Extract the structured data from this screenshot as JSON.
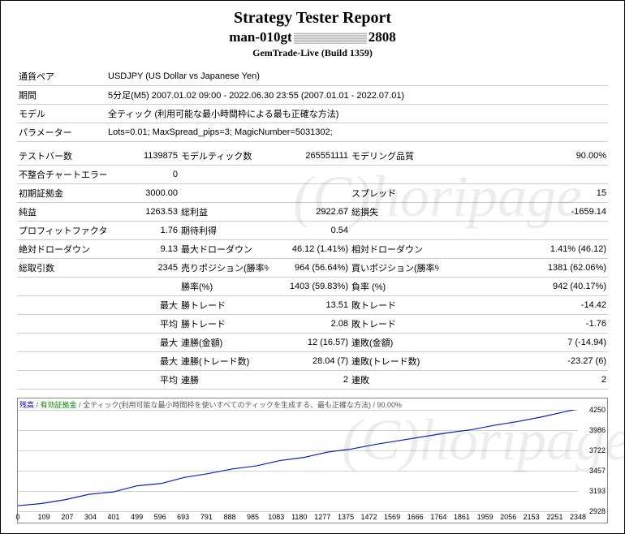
{
  "watermark": "(C)horipage",
  "header": {
    "title": "Strategy Tester Report",
    "subtitle_prefix": "man-010gt",
    "subtitle_suffix": "2808",
    "build": "GemTrade-Live (Build 1359)"
  },
  "params": {
    "symbol_label": "通貨ペア",
    "symbol": "USDJPY (US Dollar vs Japanese Yen)",
    "period_label": "期間",
    "period": "5分足(M5) 2007.01.02 09:00 - 2022.06.30 23:55 (2007.01.01 - 2022.07.01)",
    "model_label": "モデル",
    "model": "全ティック (利用可能な最小時間枠による最も正確な方法)",
    "parameters_label": "パラメーター",
    "parameters": "Lots=0.01; MaxSpread_pips=3; MagicNumber=5031302;"
  },
  "stats": {
    "bars_label": "テストバー数",
    "bars": "1139875",
    "ticks_label": "モデルティック数",
    "ticks": "265551111",
    "quality_label": "モデリング品質",
    "quality": "90.00%",
    "mismatch_label": "不整合チャートエラー",
    "mismatch": "0",
    "deposit_label": "初期証拠金",
    "deposit": "3000.00",
    "spread_label": "スプレッド",
    "spread": "15",
    "net_label": "純益",
    "net": "1263.53",
    "gross_profit_label": "総利益",
    "gross_profit": "2922.67",
    "gross_loss_label": "総損失",
    "gross_loss": "-1659.14",
    "pf_label": "プロフィットファクタ",
    "pf": "1.76",
    "expected_label": "期待利得",
    "expected": "0.54",
    "abs_dd_label": "絶対ドローダウン",
    "abs_dd": "9.13",
    "max_dd_label": "最大ドローダウン",
    "max_dd": "46.12 (1.41%)",
    "rel_dd_label": "相対ドローダウン",
    "rel_dd": "1.41% (46.12)",
    "total_trades_label": "総取引数",
    "total_trades": "2345",
    "short_label": "売りポジション(勝率%)",
    "short": "964 (56.64%)",
    "long_label": "買いポジション(勝率%)",
    "long": "1381 (62.06%)",
    "profit_trades_label": "勝率(%)",
    "profit_trades": "1403 (59.83%)",
    "loss_trades_label": "負率 (%)",
    "loss_trades": "942 (40.17%)",
    "largest_label": "最大",
    "largest_profit_label": "勝トレード",
    "largest_profit": "13.51",
    "largest_loss_label": "敗トレード",
    "largest_loss": "-14.42",
    "avg_label": "平均",
    "avg_profit_label": "勝トレード",
    "avg_profit": "2.08",
    "avg_loss_label": "敗トレード",
    "avg_loss": "-1.76",
    "max_cons_profit_money_label": "連勝(金額)",
    "max_cons_profit_money": "12 (16.57)",
    "max_cons_loss_money_label": "連敗(金額)",
    "max_cons_loss_money": "7 (-14.94)",
    "max_cons_profit_count_label": "連勝(トレード数)",
    "max_cons_profit_count": "28.04 (7)",
    "max_cons_loss_count_label": "連敗(トレード数)",
    "max_cons_loss_count": "-23.27 (6)",
    "avg_cons_win_label": "連勝",
    "avg_cons_win": "2",
    "avg_cons_loss_label": "連敗",
    "avg_cons_loss": "2"
  },
  "chart": {
    "legend_balance": "残高",
    "legend_equity": "有効証拠金",
    "legend_rest": " / 全ティック(利用可能な最小時間枠を使いすべてのティックを生成する、最も正確な方法) / 90.00%",
    "y_min": 2928,
    "y_max": 4250,
    "y_ticks": [
      2928,
      3193,
      3457,
      3722,
      3986,
      4250
    ],
    "x_ticks": [
      0,
      109,
      207,
      304,
      401,
      499,
      596,
      693,
      791,
      888,
      985,
      1083,
      1180,
      1277,
      1375,
      1472,
      1569,
      1666,
      1764,
      1861,
      1959,
      2056,
      2153,
      2251,
      2348
    ],
    "line_color": "#0a1fc0",
    "grid_color": "#d0d0d0",
    "data": [
      [
        0,
        3000
      ],
      [
        100,
        3030
      ],
      [
        200,
        3080
      ],
      [
        300,
        3150
      ],
      [
        400,
        3180
      ],
      [
        500,
        3260
      ],
      [
        600,
        3290
      ],
      [
        700,
        3370
      ],
      [
        800,
        3420
      ],
      [
        900,
        3480
      ],
      [
        1000,
        3520
      ],
      [
        1100,
        3590
      ],
      [
        1200,
        3630
      ],
      [
        1300,
        3700
      ],
      [
        1400,
        3740
      ],
      [
        1500,
        3800
      ],
      [
        1600,
        3850
      ],
      [
        1700,
        3900
      ],
      [
        1800,
        3950
      ],
      [
        1900,
        3990
      ],
      [
        2000,
        4050
      ],
      [
        2100,
        4100
      ],
      [
        2200,
        4160
      ],
      [
        2300,
        4230
      ],
      [
        2348,
        4260
      ]
    ]
  }
}
